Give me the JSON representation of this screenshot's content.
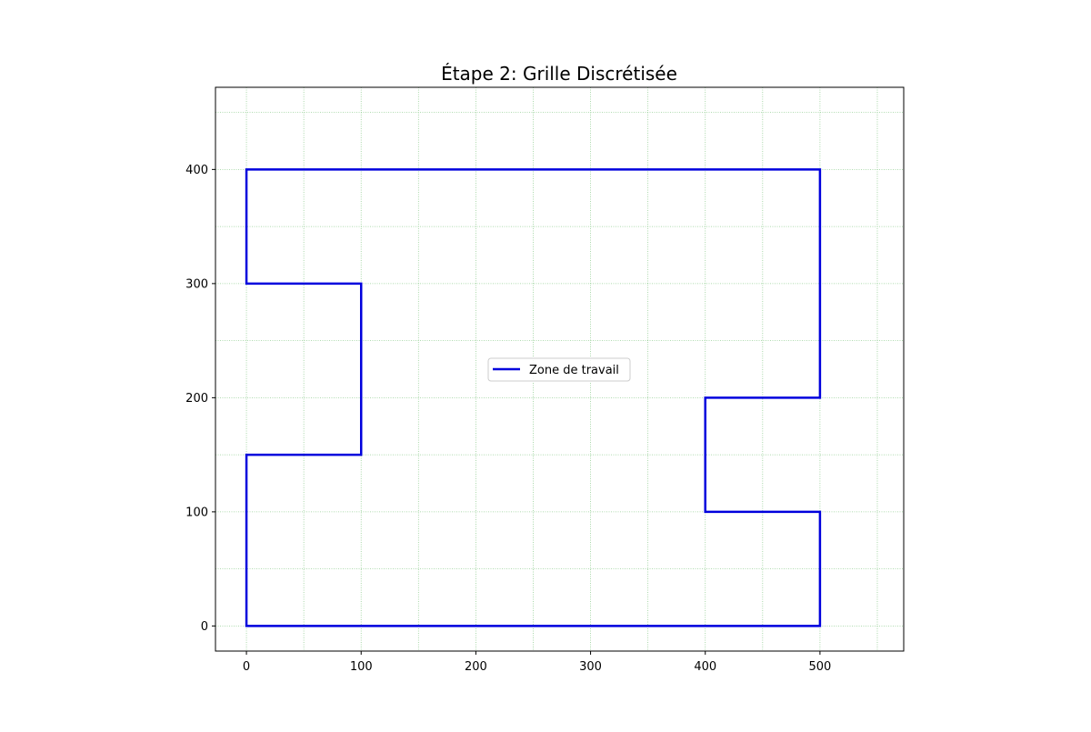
{
  "chart_data": {
    "type": "line",
    "title": "Étape 2: Grille Discrétisée",
    "xlabel": "",
    "ylabel": "",
    "xlim": [
      -27,
      573
    ],
    "ylim": [
      -22,
      472
    ],
    "xticks": [
      0,
      100,
      200,
      300,
      400,
      500
    ],
    "yticks": [
      0,
      100,
      200,
      300,
      400
    ],
    "grid": {
      "on": true,
      "step": 50,
      "color": "#2ca02c",
      "style": "dotted"
    },
    "legend": {
      "placement": "center",
      "entries": [
        "Zone de travail"
      ]
    },
    "series": [
      {
        "name": "Zone de travail",
        "color": "#0000dd",
        "closed": true,
        "x": [
          0,
          500,
          500,
          400,
          400,
          500,
          500,
          0,
          0,
          100,
          100,
          0,
          0
        ],
        "y": [
          0,
          0,
          100,
          100,
          200,
          200,
          400,
          400,
          300,
          300,
          150,
          150,
          0
        ]
      }
    ]
  }
}
